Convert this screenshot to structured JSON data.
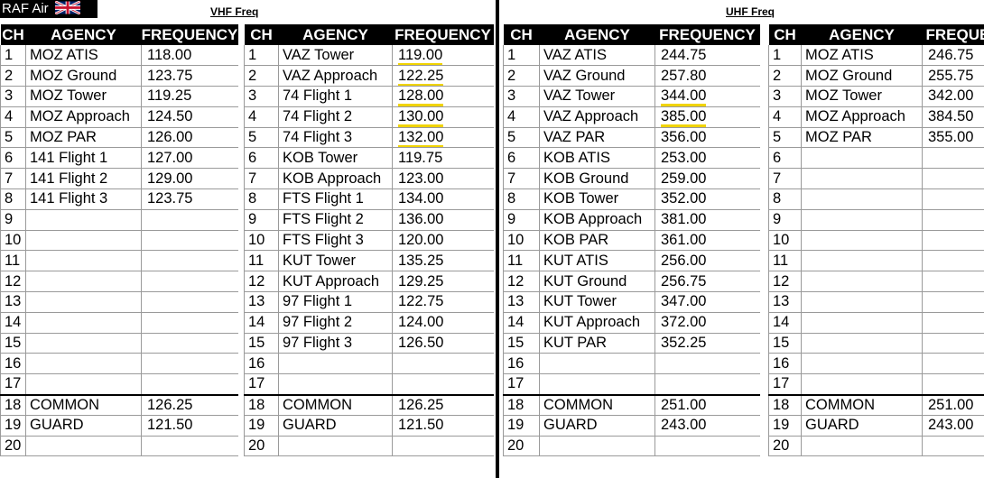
{
  "header": {
    "badge_text": "RAF Air",
    "vhf_label": "VHF Freq",
    "uhf_label": "UHF Freq"
  },
  "columns": {
    "ch": "CH",
    "agency": "AGENCY",
    "frequency": "FREQUENCY",
    "frequency_cut": "FREQUE"
  },
  "colors": {
    "highlight": "#f1d400",
    "header_bg": "#000000",
    "grid": "#9a9a9a"
  },
  "vhf": {
    "table1": [
      {
        "ch": "1",
        "agency": "MOZ ATIS",
        "freq": "118.00"
      },
      {
        "ch": "2",
        "agency": "MOZ Ground",
        "freq": "123.75"
      },
      {
        "ch": "3",
        "agency": "MOZ Tower",
        "freq": "119.25"
      },
      {
        "ch": "4",
        "agency": "MOZ Approach",
        "freq": "124.50"
      },
      {
        "ch": "5",
        "agency": "MOZ PAR",
        "freq": "126.00"
      },
      {
        "ch": "6",
        "agency": "141 Flight 1",
        "freq": "127.00"
      },
      {
        "ch": "7",
        "agency": "141 Flight 2",
        "freq": "129.00"
      },
      {
        "ch": "8",
        "agency": "141 Flight 3",
        "freq": "123.75"
      },
      {
        "ch": "9",
        "agency": "",
        "freq": ""
      },
      {
        "ch": "10",
        "agency": "",
        "freq": ""
      },
      {
        "ch": "11",
        "agency": "",
        "freq": ""
      },
      {
        "ch": "12",
        "agency": "",
        "freq": ""
      },
      {
        "ch": "13",
        "agency": "",
        "freq": ""
      },
      {
        "ch": "14",
        "agency": "",
        "freq": ""
      },
      {
        "ch": "15",
        "agency": "",
        "freq": ""
      },
      {
        "ch": "16",
        "agency": "",
        "freq": ""
      },
      {
        "ch": "17",
        "agency": "",
        "freq": ""
      },
      {
        "ch": "18",
        "agency": "COMMON",
        "freq": "126.25"
      },
      {
        "ch": "19",
        "agency": "GUARD",
        "freq": "121.50"
      },
      {
        "ch": "20",
        "agency": "",
        "freq": ""
      }
    ],
    "table2": [
      {
        "ch": "1",
        "agency": "VAZ Tower",
        "freq": "119.00",
        "hl": true
      },
      {
        "ch": "2",
        "agency": "VAZ Approach",
        "freq": "122.25",
        "hl": true
      },
      {
        "ch": "3",
        "agency": "74 Flight 1",
        "freq": "128.00",
        "hl": true
      },
      {
        "ch": "4",
        "agency": "74 Flight 2",
        "freq": "130.00",
        "hl": true
      },
      {
        "ch": "5",
        "agency": "74 Flight 3",
        "freq": "132.00",
        "hl": true
      },
      {
        "ch": "6",
        "agency": "KOB Tower",
        "freq": "119.75"
      },
      {
        "ch": "7",
        "agency": "KOB Approach",
        "freq": "123.00"
      },
      {
        "ch": "8",
        "agency": "FTS Flight 1",
        "freq": "134.00"
      },
      {
        "ch": "9",
        "agency": "FTS Flight 2",
        "freq": "136.00"
      },
      {
        "ch": "10",
        "agency": "FTS Flight 3",
        "freq": "120.00"
      },
      {
        "ch": "11",
        "agency": "KUT Tower",
        "freq": "135.25"
      },
      {
        "ch": "12",
        "agency": "KUT Approach",
        "freq": "129.25"
      },
      {
        "ch": "13",
        "agency": "97 Flight 1",
        "freq": "122.75"
      },
      {
        "ch": "14",
        "agency": "97 Flight 2",
        "freq": "124.00"
      },
      {
        "ch": "15",
        "agency": "97 Flight 3",
        "freq": "126.50"
      },
      {
        "ch": "16",
        "agency": "",
        "freq": ""
      },
      {
        "ch": "17",
        "agency": "",
        "freq": ""
      },
      {
        "ch": "18",
        "agency": "COMMON",
        "freq": "126.25"
      },
      {
        "ch": "19",
        "agency": "GUARD",
        "freq": "121.50"
      },
      {
        "ch": "20",
        "agency": "",
        "freq": ""
      }
    ]
  },
  "uhf": {
    "table1": [
      {
        "ch": "1",
        "agency": "VAZ ATIS",
        "freq": "244.75"
      },
      {
        "ch": "2",
        "agency": "VAZ Ground",
        "freq": "257.80"
      },
      {
        "ch": "3",
        "agency": "VAZ Tower",
        "freq": "344.00",
        "hl": true
      },
      {
        "ch": "4",
        "agency": "VAZ Approach",
        "freq": "385.00",
        "hl": true
      },
      {
        "ch": "5",
        "agency": "VAZ PAR",
        "freq": "356.00"
      },
      {
        "ch": "6",
        "agency": "KOB ATIS",
        "freq": "253.00"
      },
      {
        "ch": "7",
        "agency": "KOB Ground",
        "freq": "259.00"
      },
      {
        "ch": "8",
        "agency": "KOB Tower",
        "freq": "352.00"
      },
      {
        "ch": "9",
        "agency": "KOB Approach",
        "freq": "381.00"
      },
      {
        "ch": "10",
        "agency": "KOB PAR",
        "freq": "361.00"
      },
      {
        "ch": "11",
        "agency": "KUT ATIS",
        "freq": "256.00"
      },
      {
        "ch": "12",
        "agency": "KUT Ground",
        "freq": "256.75"
      },
      {
        "ch": "13",
        "agency": "KUT Tower",
        "freq": "347.00"
      },
      {
        "ch": "14",
        "agency": "KUT Approach",
        "freq": "372.00"
      },
      {
        "ch": "15",
        "agency": "KUT PAR",
        "freq": "352.25"
      },
      {
        "ch": "16",
        "agency": "",
        "freq": ""
      },
      {
        "ch": "17",
        "agency": "",
        "freq": ""
      },
      {
        "ch": "18",
        "agency": "COMMON",
        "freq": "251.00"
      },
      {
        "ch": "19",
        "agency": "GUARD",
        "freq": "243.00"
      },
      {
        "ch": "20",
        "agency": "",
        "freq": ""
      }
    ],
    "table2": [
      {
        "ch": "1",
        "agency": "MOZ ATIS",
        "freq": "246.75"
      },
      {
        "ch": "2",
        "agency": "MOZ Ground",
        "freq": "255.75"
      },
      {
        "ch": "3",
        "agency": "MOZ Tower",
        "freq": "342.00"
      },
      {
        "ch": "4",
        "agency": "MOZ Approach",
        "freq": "384.50"
      },
      {
        "ch": "5",
        "agency": "MOZ PAR",
        "freq": "355.00"
      },
      {
        "ch": "6",
        "agency": "",
        "freq": ""
      },
      {
        "ch": "7",
        "agency": "",
        "freq": ""
      },
      {
        "ch": "8",
        "agency": "",
        "freq": ""
      },
      {
        "ch": "9",
        "agency": "",
        "freq": ""
      },
      {
        "ch": "10",
        "agency": "",
        "freq": ""
      },
      {
        "ch": "11",
        "agency": "",
        "freq": ""
      },
      {
        "ch": "12",
        "agency": "",
        "freq": ""
      },
      {
        "ch": "13",
        "agency": "",
        "freq": ""
      },
      {
        "ch": "14",
        "agency": "",
        "freq": ""
      },
      {
        "ch": "15",
        "agency": "",
        "freq": ""
      },
      {
        "ch": "16",
        "agency": "",
        "freq": ""
      },
      {
        "ch": "17",
        "agency": "",
        "freq": ""
      },
      {
        "ch": "18",
        "agency": "COMMON",
        "freq": "251.00"
      },
      {
        "ch": "19",
        "agency": "GUARD",
        "freq": "243.00"
      },
      {
        "ch": "20",
        "agency": "",
        "freq": ""
      }
    ]
  }
}
